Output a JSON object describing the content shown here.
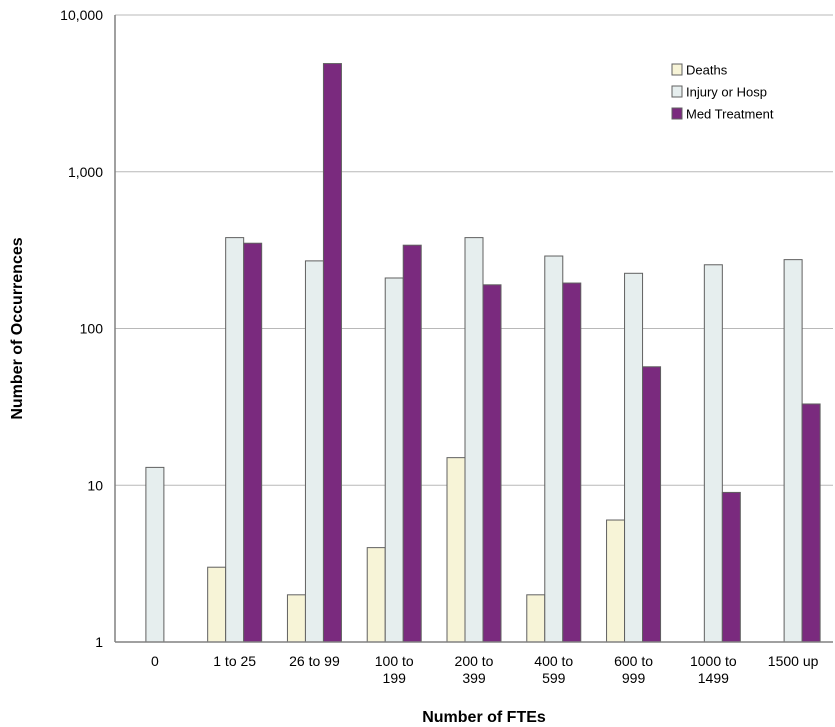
{
  "chart_data": {
    "type": "bar",
    "title": "",
    "xlabel": "Number of FTEs",
    "ylabel": "Number of Occurrences",
    "yscale": "log",
    "ylim": [
      1,
      10000
    ],
    "yticks": [
      {
        "value": 1,
        "label": "1"
      },
      {
        "value": 10,
        "label": "10"
      },
      {
        "value": 100,
        "label": "100"
      },
      {
        "value": 1000,
        "label": "1,000"
      },
      {
        "value": 10000,
        "label": "10,000"
      }
    ],
    "grid": true,
    "legend_position": "top-right",
    "categories": [
      [
        "0"
      ],
      [
        "1 to 25"
      ],
      [
        "26 to 99"
      ],
      [
        "100 to",
        "199"
      ],
      [
        "200 to",
        "399"
      ],
      [
        "400 to",
        "599"
      ],
      [
        "600 to",
        "999"
      ],
      [
        "1000 to",
        "1499"
      ],
      [
        "1500 up"
      ]
    ],
    "series": [
      {
        "name": "Deaths",
        "color": "#f7f4d7",
        "values": [
          null,
          3,
          2,
          4,
          15,
          2,
          6,
          null,
          null
        ]
      },
      {
        "name": "Injury or Hosp",
        "color": "#e6eeee",
        "values": [
          13,
          380,
          270,
          210,
          380,
          290,
          225,
          255,
          275
        ]
      },
      {
        "name": "Med Treatment",
        "color": "#7a2a7e",
        "values": [
          null,
          350,
          4900,
          340,
          190,
          195,
          57,
          9,
          33
        ]
      }
    ]
  }
}
